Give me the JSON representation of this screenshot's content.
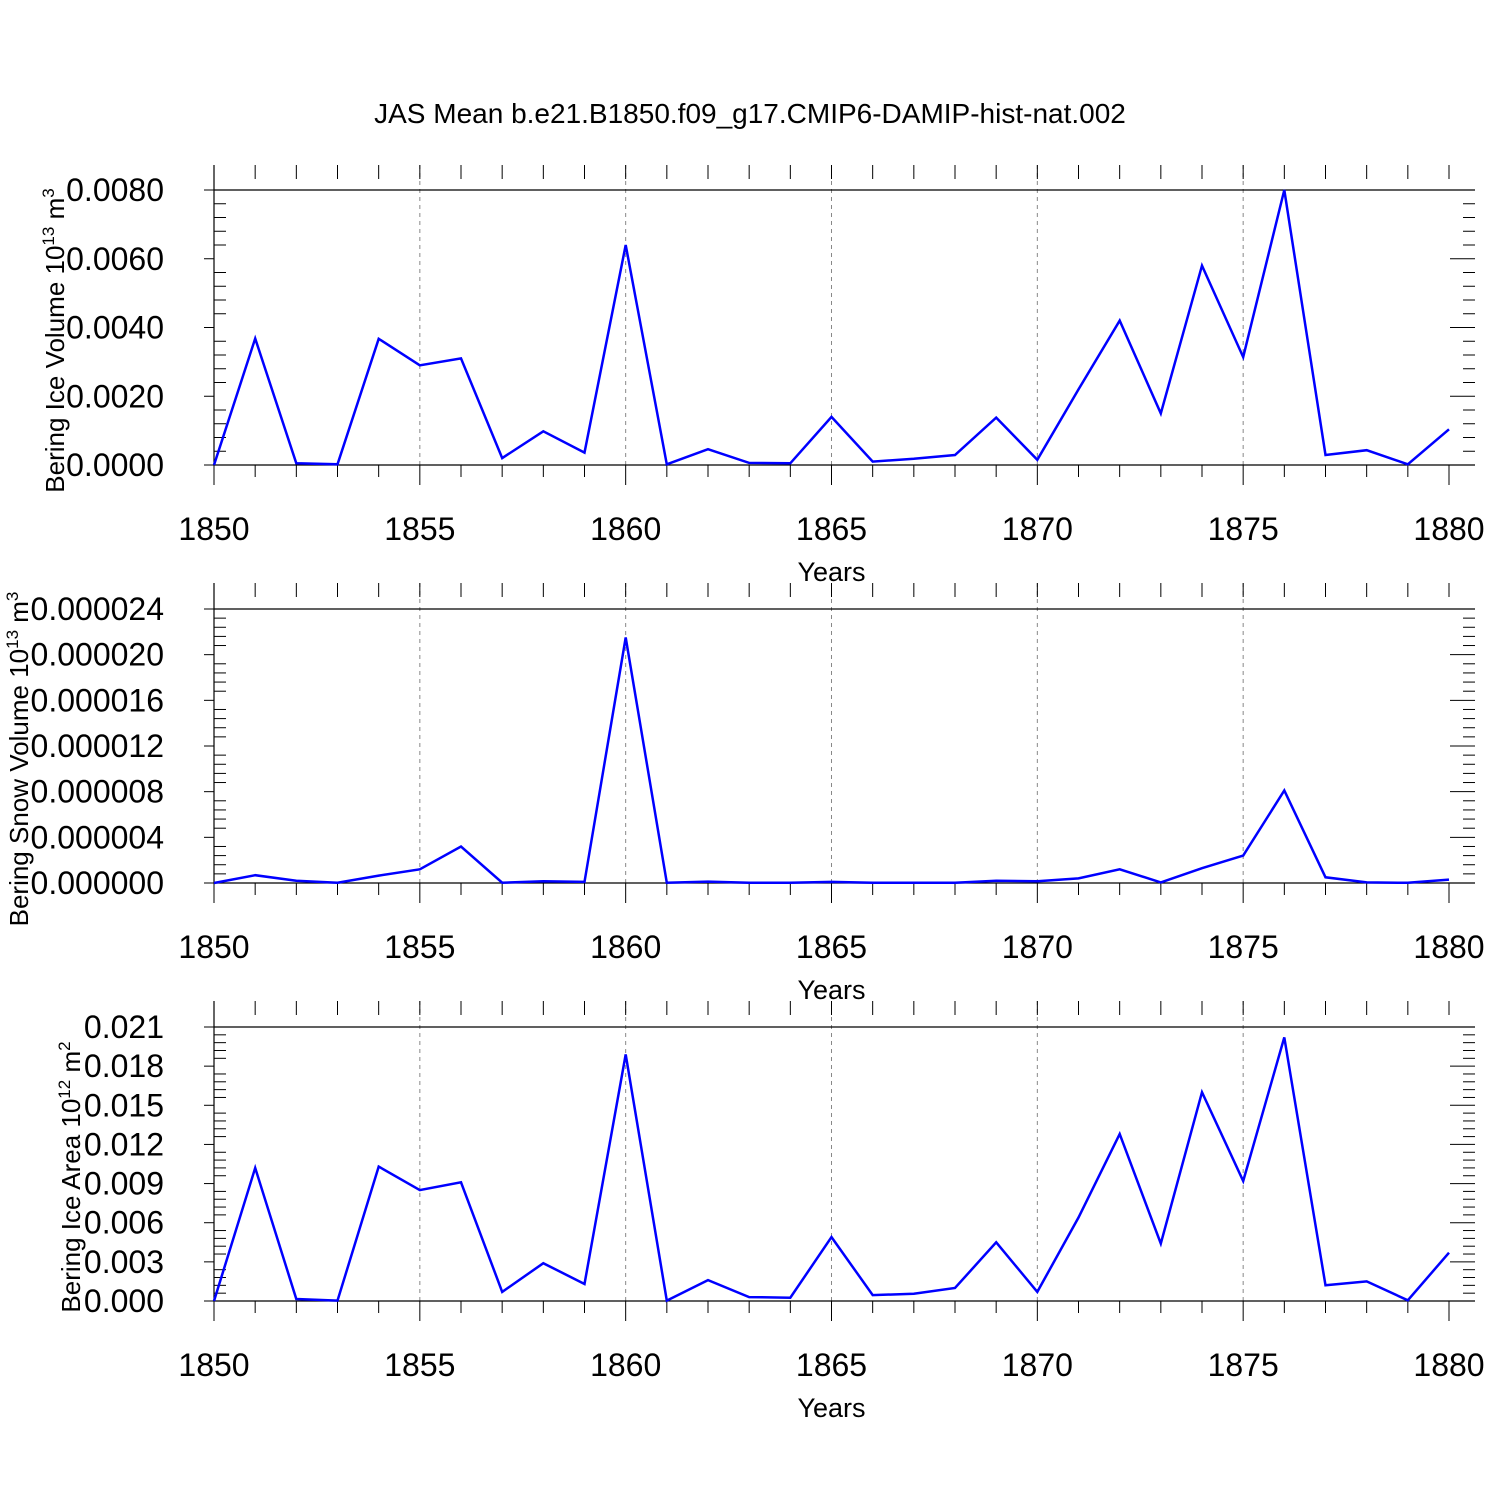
{
  "title": "JAS Mean b.e21.B1850.f09_g17.CMIP6-DAMIP-hist-nat.002",
  "colors": {
    "series": "#0000ff",
    "axis": "#000000",
    "grid": "#888888"
  },
  "chart_data": [
    {
      "type": "line",
      "xlabel": "Years",
      "ylabel": "Bering Ice Volume 10",
      "ylabel_exp": "13",
      "ylabel_unit": " m",
      "ylabel_unit_exp": "3",
      "xlim": [
        1850,
        1880
      ],
      "xticks": [
        1850,
        1855,
        1860,
        1865,
        1870,
        1875,
        1880
      ],
      "xtick_labels": [
        "1850",
        "1855",
        "1860",
        "1865",
        "1870",
        "1875",
        "1880"
      ],
      "ylim": [
        0,
        0.008
      ],
      "yticks": [
        0,
        0.002,
        0.004,
        0.006,
        0.008
      ],
      "ytick_labels": [
        "0.0000",
        "0.0020",
        "0.0040",
        "0.0060",
        "0.0080"
      ],
      "x": [
        1850,
        1851,
        1852,
        1853,
        1854,
        1855,
        1856,
        1857,
        1858,
        1859,
        1860,
        1861,
        1862,
        1863,
        1864,
        1865,
        1866,
        1867,
        1868,
        1869,
        1870,
        1871,
        1872,
        1873,
        1874,
        1875,
        1876,
        1877,
        1878,
        1879,
        1880
      ],
      "values": [
        0.0,
        0.00368,
        5e-05,
        2e-05,
        0.00367,
        0.0029,
        0.0031,
        0.0002,
        0.00098,
        0.00036,
        0.0064,
        2e-05,
        0.00046,
        6e-05,
        5e-05,
        0.0014,
        0.0001,
        0.00018,
        0.00029,
        0.00138,
        0.00015,
        0.0022,
        0.0042,
        0.0015,
        0.0058,
        0.00314,
        0.008,
        0.00029,
        0.00043,
        2e-05,
        0.00104
      ]
    },
    {
      "type": "line",
      "xlabel": "Years",
      "ylabel": "Bering Snow Volume 10",
      "ylabel_exp": "13",
      "ylabel_unit": " m",
      "ylabel_unit_exp": "3",
      "xlim": [
        1850,
        1880
      ],
      "xticks": [
        1850,
        1855,
        1860,
        1865,
        1870,
        1875,
        1880
      ],
      "xtick_labels": [
        "1850",
        "1855",
        "1860",
        "1865",
        "1870",
        "1875",
        "1880"
      ],
      "ylim": [
        0,
        2.4e-05
      ],
      "yticks": [
        0,
        4e-06,
        8e-06,
        1.2e-05,
        1.6e-05,
        2e-05,
        2.4e-05
      ],
      "ytick_labels": [
        "0.000000",
        "0.000004",
        "0.000008",
        "0.000012",
        "0.000016",
        "0.000020",
        "0.000024"
      ],
      "x": [
        1850,
        1851,
        1852,
        1853,
        1854,
        1855,
        1856,
        1857,
        1858,
        1859,
        1860,
        1861,
        1862,
        1863,
        1864,
        1865,
        1866,
        1867,
        1868,
        1869,
        1870,
        1871,
        1872,
        1873,
        1874,
        1875,
        1876,
        1877,
        1878,
        1879,
        1880
      ],
      "values": [
        0.0,
        6.8e-07,
        2e-07,
        3e-08,
        6.5e-07,
        1.2e-06,
        3.2e-06,
        3e-08,
        1.5e-07,
        1e-07,
        2.15e-05,
        3e-08,
        1.2e-07,
        3e-08,
        3e-08,
        1e-07,
        2e-08,
        2e-08,
        3e-08,
        2e-07,
        1.5e-07,
        4e-07,
        1.2e-06,
        5e-08,
        1.3e-06,
        2.4e-06,
        8.1e-06,
        5e-07,
        5e-08,
        2e-08,
        3e-07
      ]
    },
    {
      "type": "line",
      "xlabel": "Years",
      "ylabel": "Bering Ice Area 10",
      "ylabel_exp": "12",
      "ylabel_unit": " m",
      "ylabel_unit_exp": "2",
      "xlim": [
        1850,
        1880
      ],
      "xticks": [
        1850,
        1855,
        1860,
        1865,
        1870,
        1875,
        1880
      ],
      "xtick_labels": [
        "1850",
        "1855",
        "1860",
        "1865",
        "1870",
        "1875",
        "1880"
      ],
      "ylim": [
        0,
        0.021
      ],
      "yticks": [
        0,
        0.003,
        0.006,
        0.009,
        0.012,
        0.015,
        0.018,
        0.021
      ],
      "ytick_labels": [
        "0.000",
        "0.003",
        "0.006",
        "0.009",
        "0.012",
        "0.015",
        "0.018",
        "0.021"
      ],
      "x": [
        1850,
        1851,
        1852,
        1853,
        1854,
        1855,
        1856,
        1857,
        1858,
        1859,
        1860,
        1861,
        1862,
        1863,
        1864,
        1865,
        1866,
        1867,
        1868,
        1869,
        1870,
        1871,
        1872,
        1873,
        1874,
        1875,
        1876,
        1877,
        1878,
        1879,
        1880
      ],
      "values": [
        0.0,
        0.0102,
        0.00015,
        3e-05,
        0.0103,
        0.0085,
        0.0091,
        0.0007,
        0.0029,
        0.0013,
        0.0189,
        3e-05,
        0.0016,
        0.0003,
        0.00025,
        0.0049,
        0.00045,
        0.00055,
        0.001,
        0.0045,
        0.0007,
        0.0064,
        0.0128,
        0.0044,
        0.016,
        0.0092,
        0.0202,
        0.0012,
        0.0015,
        5e-05,
        0.0037
      ]
    }
  ]
}
